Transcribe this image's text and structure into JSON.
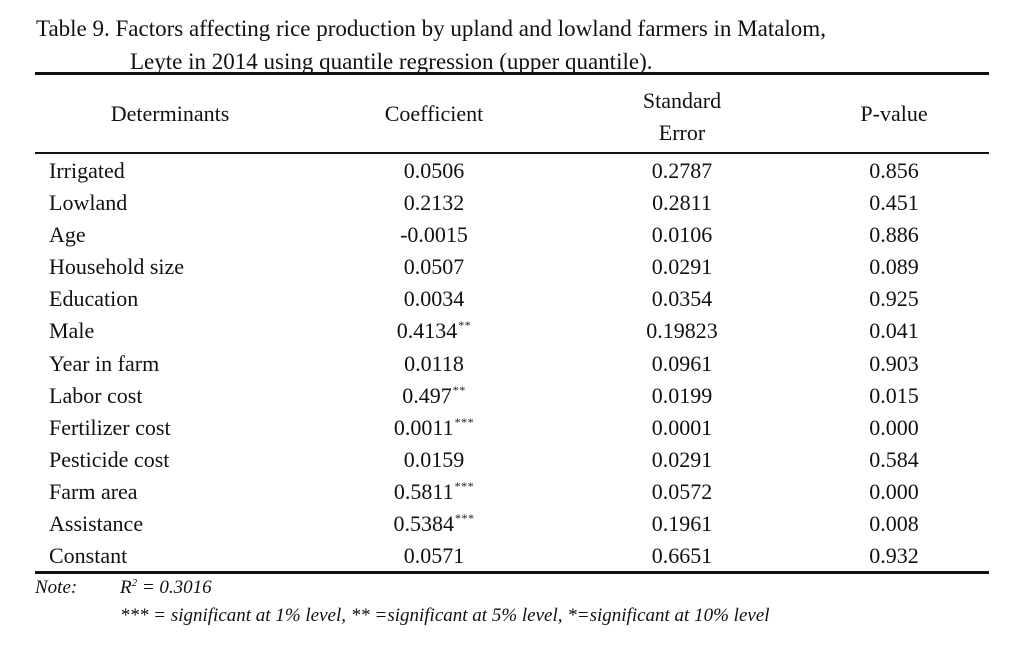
{
  "caption": {
    "line1": "Table 9.  Factors affecting rice production by upland and lowland farmers in Matalom,",
    "line2": "Leyte in 2014 using quantile regression (upper quantile)."
  },
  "headers": {
    "determinants": "Determinants",
    "coefficient": "Coefficient",
    "std_error_line1": "Standard",
    "std_error_line2": "Error",
    "p_value": "P-value"
  },
  "rows": [
    {
      "name": "Irrigated",
      "coef": "0.0506",
      "sig": "",
      "se": "0.2787",
      "p": "0.856"
    },
    {
      "name": "Lowland",
      "coef": "0.2132",
      "sig": "",
      "se": "0.2811",
      "p": "0.451"
    },
    {
      "name": "Age",
      "coef": "-0.0015",
      "sig": "",
      "se": "0.0106",
      "p": "0.886"
    },
    {
      "name": "Household size",
      "coef": "0.0507",
      "sig": "",
      "se": "0.0291",
      "p": "0.089"
    },
    {
      "name": "Education",
      "coef": "0.0034",
      "sig": "",
      "se": "0.0354",
      "p": "0.925"
    },
    {
      "name": "Male",
      "coef": "0.4134",
      "sig": "**",
      "se": "0.19823",
      "p": "0.041"
    },
    {
      "name": "Year in farm",
      "coef": "0.0118",
      "sig": "",
      "se": "0.0961",
      "p": "0.903"
    },
    {
      "name": "Labor cost",
      "coef": "0.497",
      "sig": "**",
      "se": "0.0199",
      "p": "0.015"
    },
    {
      "name": "Fertilizer cost",
      "coef": "0.0011",
      "sig": "***",
      "se": "0.0001",
      "p": "0.000"
    },
    {
      "name": "Pesticide cost",
      "coef": "0.0159",
      "sig": "",
      "se": "0.0291",
      "p": "0.584"
    },
    {
      "name": "Farm area",
      "coef": "0.5811",
      "sig": "***",
      "se": "0.0572",
      "p": "0.000"
    },
    {
      "name": "Assistance",
      "coef": "0.5384",
      "sig": "***",
      "se": "0.1961",
      "p": "0.008"
    },
    {
      "name": "Constant",
      "coef": "0.0571",
      "sig": "",
      "se": "0.6651",
      "p": "0.932"
    }
  ],
  "note": {
    "label": "Note:",
    "r2_prefix": "R",
    "r2_sup": "2",
    "r2_value": " = 0.3016",
    "significance": "***  =  significant at 1% level, ** =significant at 5% level, *=significant at 10% level"
  }
}
